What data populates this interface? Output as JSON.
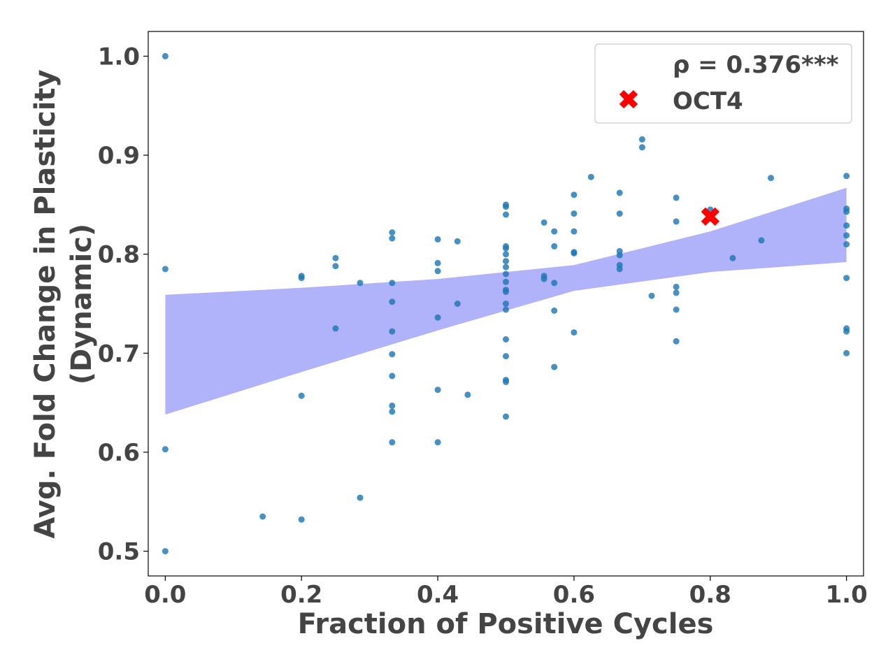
{
  "chart_data": {
    "type": "scatter",
    "xlabel": "Fraction of Positive Cycles",
    "ylabel_lines": [
      "Avg. Fold Change in Plasticity",
      "(Dynamic)"
    ],
    "xlim": [
      -0.025,
      1.025
    ],
    "ylim": [
      0.475,
      1.025
    ],
    "x_ticks": [
      {
        "value": 0.0,
        "label": "0.0"
      },
      {
        "value": 0.2,
        "label": "0.2"
      },
      {
        "value": 0.4,
        "label": "0.4"
      },
      {
        "value": 0.6,
        "label": "0.6"
      },
      {
        "value": 0.8,
        "label": "0.8"
      },
      {
        "value": 1.0,
        "label": "1.0"
      }
    ],
    "y_ticks": [
      {
        "value": 0.5,
        "label": "0.5"
      },
      {
        "value": 0.6,
        "label": "0.6"
      },
      {
        "value": 0.7,
        "label": "0.7"
      },
      {
        "value": 0.8,
        "label": "0.8"
      },
      {
        "value": 0.9,
        "label": "0.9"
      },
      {
        "value": 1.0,
        "label": "1.0"
      }
    ],
    "grid": false,
    "legend_position": "top-right",
    "legend": {
      "correlation_label": "ρ = 0.376***",
      "highlight_label": "OCT4"
    },
    "colors": {
      "points": "#1f77b4",
      "band": "#b0b2fa",
      "highlight": "#ff0000",
      "text": "#444444"
    },
    "confidence_band": {
      "x": [
        0.0,
        0.2,
        0.4,
        0.6,
        0.8,
        1.0
      ],
      "upper": [
        0.759,
        0.766,
        0.775,
        0.789,
        0.823,
        0.867
      ],
      "lower": [
        0.638,
        0.681,
        0.723,
        0.763,
        0.782,
        0.792
      ]
    },
    "highlight_point": {
      "name": "OCT4",
      "x": 0.8,
      "y": 0.838
    },
    "points": [
      {
        "x": 0.0,
        "y": 1.0
      },
      {
        "x": 0.0,
        "y": 0.785
      },
      {
        "x": 0.0,
        "y": 0.603
      },
      {
        "x": 0.0,
        "y": 0.5
      },
      {
        "x": 0.143,
        "y": 0.535
      },
      {
        "x": 0.2,
        "y": 0.778
      },
      {
        "x": 0.2,
        "y": 0.776
      },
      {
        "x": 0.2,
        "y": 0.657
      },
      {
        "x": 0.2,
        "y": 0.532
      },
      {
        "x": 0.25,
        "y": 0.796
      },
      {
        "x": 0.25,
        "y": 0.788
      },
      {
        "x": 0.25,
        "y": 0.725
      },
      {
        "x": 0.286,
        "y": 0.771
      },
      {
        "x": 0.286,
        "y": 0.554
      },
      {
        "x": 0.333,
        "y": 0.822
      },
      {
        "x": 0.333,
        "y": 0.816
      },
      {
        "x": 0.333,
        "y": 0.771
      },
      {
        "x": 0.333,
        "y": 0.752
      },
      {
        "x": 0.333,
        "y": 0.722
      },
      {
        "x": 0.333,
        "y": 0.699
      },
      {
        "x": 0.333,
        "y": 0.677
      },
      {
        "x": 0.333,
        "y": 0.647
      },
      {
        "x": 0.333,
        "y": 0.641
      },
      {
        "x": 0.333,
        "y": 0.61
      },
      {
        "x": 0.4,
        "y": 0.815
      },
      {
        "x": 0.4,
        "y": 0.791
      },
      {
        "x": 0.4,
        "y": 0.783
      },
      {
        "x": 0.4,
        "y": 0.736
      },
      {
        "x": 0.4,
        "y": 0.663
      },
      {
        "x": 0.4,
        "y": 0.61
      },
      {
        "x": 0.429,
        "y": 0.813
      },
      {
        "x": 0.429,
        "y": 0.75
      },
      {
        "x": 0.444,
        "y": 0.658
      },
      {
        "x": 0.5,
        "y": 0.85
      },
      {
        "x": 0.5,
        "y": 0.848
      },
      {
        "x": 0.5,
        "y": 0.84
      },
      {
        "x": 0.5,
        "y": 0.808
      },
      {
        "x": 0.5,
        "y": 0.806
      },
      {
        "x": 0.5,
        "y": 0.8
      },
      {
        "x": 0.5,
        "y": 0.793
      },
      {
        "x": 0.5,
        "y": 0.787
      },
      {
        "x": 0.5,
        "y": 0.78
      },
      {
        "x": 0.5,
        "y": 0.772
      },
      {
        "x": 0.5,
        "y": 0.764
      },
      {
        "x": 0.5,
        "y": 0.762
      },
      {
        "x": 0.5,
        "y": 0.75
      },
      {
        "x": 0.5,
        "y": 0.744
      },
      {
        "x": 0.5,
        "y": 0.714
      },
      {
        "x": 0.5,
        "y": 0.697
      },
      {
        "x": 0.5,
        "y": 0.673
      },
      {
        "x": 0.5,
        "y": 0.671
      },
      {
        "x": 0.5,
        "y": 0.636
      },
      {
        "x": 0.556,
        "y": 0.832
      },
      {
        "x": 0.556,
        "y": 0.778
      },
      {
        "x": 0.556,
        "y": 0.775
      },
      {
        "x": 0.571,
        "y": 0.823
      },
      {
        "x": 0.571,
        "y": 0.808
      },
      {
        "x": 0.571,
        "y": 0.771
      },
      {
        "x": 0.571,
        "y": 0.743
      },
      {
        "x": 0.571,
        "y": 0.686
      },
      {
        "x": 0.6,
        "y": 0.86
      },
      {
        "x": 0.6,
        "y": 0.841
      },
      {
        "x": 0.6,
        "y": 0.823
      },
      {
        "x": 0.6,
        "y": 0.802
      },
      {
        "x": 0.6,
        "y": 0.801
      },
      {
        "x": 0.6,
        "y": 0.721
      },
      {
        "x": 0.625,
        "y": 0.878
      },
      {
        "x": 0.667,
        "y": 0.862
      },
      {
        "x": 0.667,
        "y": 0.841
      },
      {
        "x": 0.667,
        "y": 0.803
      },
      {
        "x": 0.667,
        "y": 0.799
      },
      {
        "x": 0.667,
        "y": 0.789
      },
      {
        "x": 0.667,
        "y": 0.785
      },
      {
        "x": 0.7,
        "y": 0.916
      },
      {
        "x": 0.7,
        "y": 0.908
      },
      {
        "x": 0.714,
        "y": 0.758
      },
      {
        "x": 0.75,
        "y": 0.857
      },
      {
        "x": 0.75,
        "y": 0.833
      },
      {
        "x": 0.75,
        "y": 0.767
      },
      {
        "x": 0.75,
        "y": 0.761
      },
      {
        "x": 0.75,
        "y": 0.744
      },
      {
        "x": 0.75,
        "y": 0.712
      },
      {
        "x": 0.8,
        "y": 0.845
      },
      {
        "x": 0.833,
        "y": 0.796
      },
      {
        "x": 0.875,
        "y": 0.814
      },
      {
        "x": 0.889,
        "y": 0.877
      },
      {
        "x": 1.0,
        "y": 0.879
      },
      {
        "x": 1.0,
        "y": 0.846
      },
      {
        "x": 1.0,
        "y": 0.843
      },
      {
        "x": 1.0,
        "y": 0.829
      },
      {
        "x": 1.0,
        "y": 0.819
      },
      {
        "x": 1.0,
        "y": 0.81
      },
      {
        "x": 1.0,
        "y": 0.776
      },
      {
        "x": 1.0,
        "y": 0.725
      },
      {
        "x": 1.0,
        "y": 0.722
      },
      {
        "x": 1.0,
        "y": 0.7
      }
    ]
  }
}
